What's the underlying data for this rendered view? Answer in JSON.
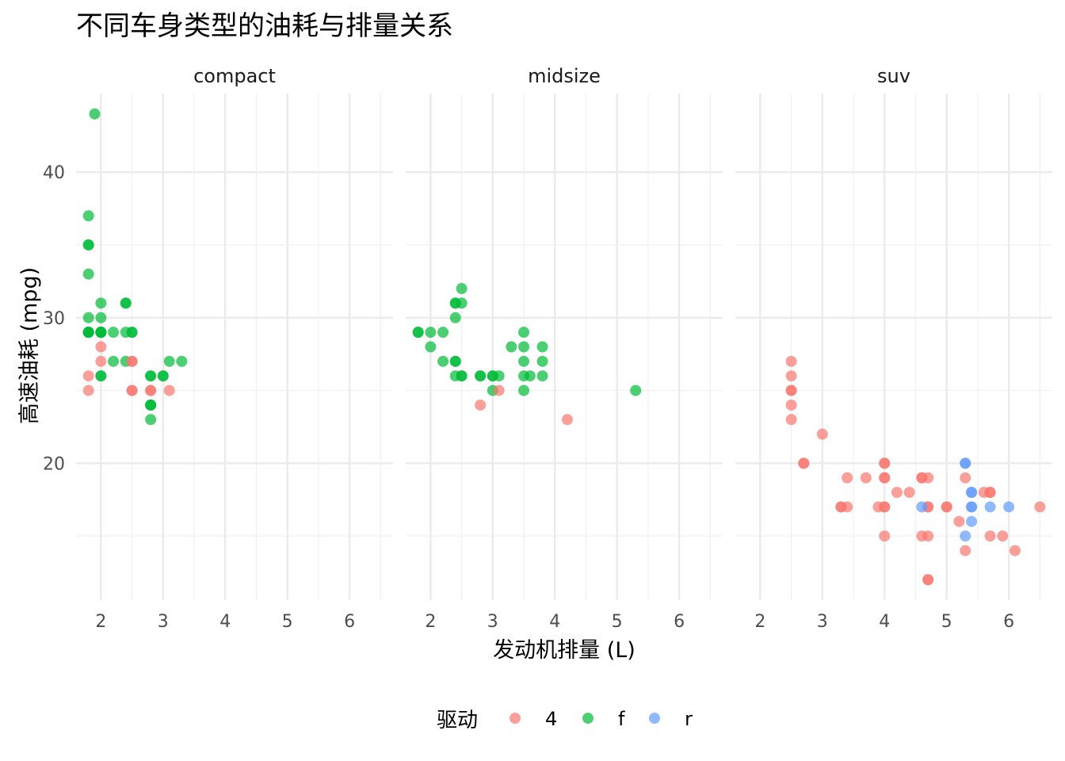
{
  "chart_data": {
    "type": "scatter",
    "title": "不同车身类型的油耗与排量关系",
    "xlabel": "发动机排量 (L)",
    "ylabel": "高速油耗 (mpg)",
    "xlim": [
      1.6,
      6.7
    ],
    "ylim": [
      10.6,
      45.4
    ],
    "x_ticks": [
      2,
      3,
      4,
      5,
      6
    ],
    "y_ticks": [
      20,
      30,
      40
    ],
    "grid": true,
    "legend": {
      "title": "驱动",
      "position": "bottom",
      "items": [
        {
          "label": "4",
          "color": "#F8766D"
        },
        {
          "label": "f",
          "color": "#00BA38"
        },
        {
          "label": "r",
          "color": "#619CFF"
        }
      ]
    },
    "point_opacity": 0.7,
    "panels": [
      {
        "name": "compact",
        "points": [
          {
            "x": 1.8,
            "y": 29,
            "drv": "f"
          },
          {
            "x": 1.8,
            "y": 29,
            "drv": "f"
          },
          {
            "x": 2.0,
            "y": 31,
            "drv": "f"
          },
          {
            "x": 2.0,
            "y": 30,
            "drv": "f"
          },
          {
            "x": 2.8,
            "y": 26,
            "drv": "f"
          },
          {
            "x": 2.8,
            "y": 26,
            "drv": "f"
          },
          {
            "x": 3.1,
            "y": 27,
            "drv": "f"
          },
          {
            "x": 1.8,
            "y": 26,
            "drv": "4"
          },
          {
            "x": 1.8,
            "y": 25,
            "drv": "4"
          },
          {
            "x": 2.0,
            "y": 28,
            "drv": "4"
          },
          {
            "x": 2.0,
            "y": 27,
            "drv": "4"
          },
          {
            "x": 2.8,
            "y": 25,
            "drv": "4"
          },
          {
            "x": 2.8,
            "y": 25,
            "drv": "4"
          },
          {
            "x": 3.1,
            "y": 25,
            "drv": "4"
          },
          {
            "x": 2.2,
            "y": 29,
            "drv": "f"
          },
          {
            "x": 2.2,
            "y": 27,
            "drv": "f"
          },
          {
            "x": 2.4,
            "y": 31,
            "drv": "f"
          },
          {
            "x": 2.4,
            "y": 31,
            "drv": "f"
          },
          {
            "x": 3.0,
            "y": 26,
            "drv": "f"
          },
          {
            "x": 3.0,
            "y": 26,
            "drv": "f"
          },
          {
            "x": 3.3,
            "y": 27,
            "drv": "f"
          },
          {
            "x": 2.0,
            "y": 29,
            "drv": "f"
          },
          {
            "x": 2.0,
            "y": 29,
            "drv": "f"
          },
          {
            "x": 2.0,
            "y": 26,
            "drv": "f"
          },
          {
            "x": 2.0,
            "y": 26,
            "drv": "f"
          },
          {
            "x": 2.0,
            "y": 29,
            "drv": "f"
          },
          {
            "x": 2.5,
            "y": 29,
            "drv": "f"
          },
          {
            "x": 2.5,
            "y": 29,
            "drv": "f"
          },
          {
            "x": 2.8,
            "y": 23,
            "drv": "f"
          },
          {
            "x": 2.8,
            "y": 24,
            "drv": "f"
          },
          {
            "x": 1.8,
            "y": 29,
            "drv": "f"
          },
          {
            "x": 1.8,
            "y": 29,
            "drv": "f"
          },
          {
            "x": 2.0,
            "y": 29,
            "drv": "f"
          },
          {
            "x": 2.0,
            "y": 29,
            "drv": "f"
          },
          {
            "x": 2.8,
            "y": 24,
            "drv": "f"
          },
          {
            "x": 2.8,
            "y": 24,
            "drv": "f"
          },
          {
            "x": 1.8,
            "y": 33,
            "drv": "f"
          },
          {
            "x": 1.8,
            "y": 35,
            "drv": "f"
          },
          {
            "x": 1.8,
            "y": 37,
            "drv": "f"
          },
          {
            "x": 1.8,
            "y": 35,
            "drv": "f"
          },
          {
            "x": 1.9,
            "y": 44,
            "drv": "f"
          },
          {
            "x": 1.8,
            "y": 30,
            "drv": "f"
          },
          {
            "x": 2.4,
            "y": 29,
            "drv": "f"
          },
          {
            "x": 2.4,
            "y": 27,
            "drv": "f"
          },
          {
            "x": 2.5,
            "y": 27,
            "drv": "4"
          },
          {
            "x": 2.5,
            "y": 25,
            "drv": "4"
          },
          {
            "x": 2.5,
            "y": 25,
            "drv": "4"
          },
          {
            "x": 2.5,
            "y": 27,
            "drv": "4"
          }
        ]
      },
      {
        "name": "midsize",
        "points": [
          {
            "x": 1.8,
            "y": 29,
            "drv": "f"
          },
          {
            "x": 1.8,
            "y": 29,
            "drv": "f"
          },
          {
            "x": 2.0,
            "y": 29,
            "drv": "f"
          },
          {
            "x": 2.0,
            "y": 28,
            "drv": "f"
          },
          {
            "x": 2.2,
            "y": 29,
            "drv": "f"
          },
          {
            "x": 2.2,
            "y": 27,
            "drv": "f"
          },
          {
            "x": 2.4,
            "y": 31,
            "drv": "f"
          },
          {
            "x": 2.4,
            "y": 30,
            "drv": "f"
          },
          {
            "x": 2.4,
            "y": 31,
            "drv": "f"
          },
          {
            "x": 2.4,
            "y": 27,
            "drv": "f"
          },
          {
            "x": 2.4,
            "y": 26,
            "drv": "f"
          },
          {
            "x": 2.4,
            "y": 27,
            "drv": "f"
          },
          {
            "x": 2.5,
            "y": 26,
            "drv": "f"
          },
          {
            "x": 2.5,
            "y": 26,
            "drv": "f"
          },
          {
            "x": 2.5,
            "y": 32,
            "drv": "f"
          },
          {
            "x": 2.5,
            "y": 31,
            "drv": "f"
          },
          {
            "x": 2.8,
            "y": 26,
            "drv": "f"
          },
          {
            "x": 2.8,
            "y": 26,
            "drv": "f"
          },
          {
            "x": 3.0,
            "y": 26,
            "drv": "f"
          },
          {
            "x": 3.0,
            "y": 26,
            "drv": "f"
          },
          {
            "x": 3.0,
            "y": 25,
            "drv": "f"
          },
          {
            "x": 3.1,
            "y": 26,
            "drv": "f"
          },
          {
            "x": 3.3,
            "y": 28,
            "drv": "f"
          },
          {
            "x": 3.5,
            "y": 29,
            "drv": "f"
          },
          {
            "x": 3.5,
            "y": 28,
            "drv": "f"
          },
          {
            "x": 3.5,
            "y": 27,
            "drv": "f"
          },
          {
            "x": 3.5,
            "y": 26,
            "drv": "f"
          },
          {
            "x": 3.5,
            "y": 25,
            "drv": "f"
          },
          {
            "x": 3.6,
            "y": 26,
            "drv": "f"
          },
          {
            "x": 3.8,
            "y": 28,
            "drv": "f"
          },
          {
            "x": 3.8,
            "y": 27,
            "drv": "f"
          },
          {
            "x": 3.8,
            "y": 26,
            "drv": "f"
          },
          {
            "x": 5.3,
            "y": 25,
            "drv": "f"
          },
          {
            "x": 2.8,
            "y": 24,
            "drv": "4"
          },
          {
            "x": 3.1,
            "y": 25,
            "drv": "4"
          },
          {
            "x": 4.2,
            "y": 23,
            "drv": "4"
          }
        ]
      },
      {
        "name": "suv",
        "points": [
          {
            "x": 2.5,
            "y": 27,
            "drv": "4"
          },
          {
            "x": 2.5,
            "y": 26,
            "drv": "4"
          },
          {
            "x": 2.5,
            "y": 25,
            "drv": "4"
          },
          {
            "x": 2.5,
            "y": 25,
            "drv": "4"
          },
          {
            "x": 2.5,
            "y": 24,
            "drv": "4"
          },
          {
            "x": 2.5,
            "y": 23,
            "drv": "4"
          },
          {
            "x": 2.7,
            "y": 20,
            "drv": "4"
          },
          {
            "x": 2.7,
            "y": 20,
            "drv": "4"
          },
          {
            "x": 3.0,
            "y": 22,
            "drv": "4"
          },
          {
            "x": 3.3,
            "y": 17,
            "drv": "4"
          },
          {
            "x": 3.3,
            "y": 17,
            "drv": "4"
          },
          {
            "x": 3.4,
            "y": 19,
            "drv": "4"
          },
          {
            "x": 3.4,
            "y": 17,
            "drv": "4"
          },
          {
            "x": 3.7,
            "y": 19,
            "drv": "4"
          },
          {
            "x": 3.9,
            "y": 17,
            "drv": "4"
          },
          {
            "x": 4.0,
            "y": 20,
            "drv": "4"
          },
          {
            "x": 4.0,
            "y": 20,
            "drv": "4"
          },
          {
            "x": 4.0,
            "y": 19,
            "drv": "4"
          },
          {
            "x": 4.0,
            "y": 19,
            "drv": "4"
          },
          {
            "x": 4.0,
            "y": 17,
            "drv": "4"
          },
          {
            "x": 4.0,
            "y": 17,
            "drv": "4"
          },
          {
            "x": 4.0,
            "y": 15,
            "drv": "4"
          },
          {
            "x": 4.2,
            "y": 18,
            "drv": "4"
          },
          {
            "x": 4.4,
            "y": 18,
            "drv": "4"
          },
          {
            "x": 4.6,
            "y": 19,
            "drv": "4"
          },
          {
            "x": 4.6,
            "y": 19,
            "drv": "4"
          },
          {
            "x": 4.6,
            "y": 15,
            "drv": "4"
          },
          {
            "x": 4.7,
            "y": 19,
            "drv": "4"
          },
          {
            "x": 4.7,
            "y": 17,
            "drv": "4"
          },
          {
            "x": 4.7,
            "y": 17,
            "drv": "4"
          },
          {
            "x": 4.7,
            "y": 15,
            "drv": "4"
          },
          {
            "x": 4.7,
            "y": 12,
            "drv": "4"
          },
          {
            "x": 4.7,
            "y": 12,
            "drv": "4"
          },
          {
            "x": 5.0,
            "y": 17,
            "drv": "4"
          },
          {
            "x": 5.0,
            "y": 17,
            "drv": "4"
          },
          {
            "x": 5.2,
            "y": 16,
            "drv": "4"
          },
          {
            "x": 5.3,
            "y": 19,
            "drv": "4"
          },
          {
            "x": 5.3,
            "y": 14,
            "drv": "4"
          },
          {
            "x": 5.6,
            "y": 18,
            "drv": "4"
          },
          {
            "x": 5.7,
            "y": 18,
            "drv": "4"
          },
          {
            "x": 5.7,
            "y": 18,
            "drv": "4"
          },
          {
            "x": 5.7,
            "y": 15,
            "drv": "4"
          },
          {
            "x": 5.9,
            "y": 15,
            "drv": "4"
          },
          {
            "x": 6.1,
            "y": 14,
            "drv": "4"
          },
          {
            "x": 6.5,
            "y": 17,
            "drv": "4"
          },
          {
            "x": 4.6,
            "y": 17,
            "drv": "r"
          },
          {
            "x": 5.3,
            "y": 20,
            "drv": "r"
          },
          {
            "x": 5.3,
            "y": 20,
            "drv": "r"
          },
          {
            "x": 5.3,
            "y": 15,
            "drv": "r"
          },
          {
            "x": 5.4,
            "y": 18,
            "drv": "r"
          },
          {
            "x": 5.4,
            "y": 18,
            "drv": "r"
          },
          {
            "x": 5.4,
            "y": 17,
            "drv": "r"
          },
          {
            "x": 5.4,
            "y": 17,
            "drv": "r"
          },
          {
            "x": 5.4,
            "y": 16,
            "drv": "r"
          },
          {
            "x": 5.7,
            "y": 17,
            "drv": "r"
          },
          {
            "x": 6.0,
            "y": 17,
            "drv": "r"
          }
        ]
      }
    ]
  }
}
